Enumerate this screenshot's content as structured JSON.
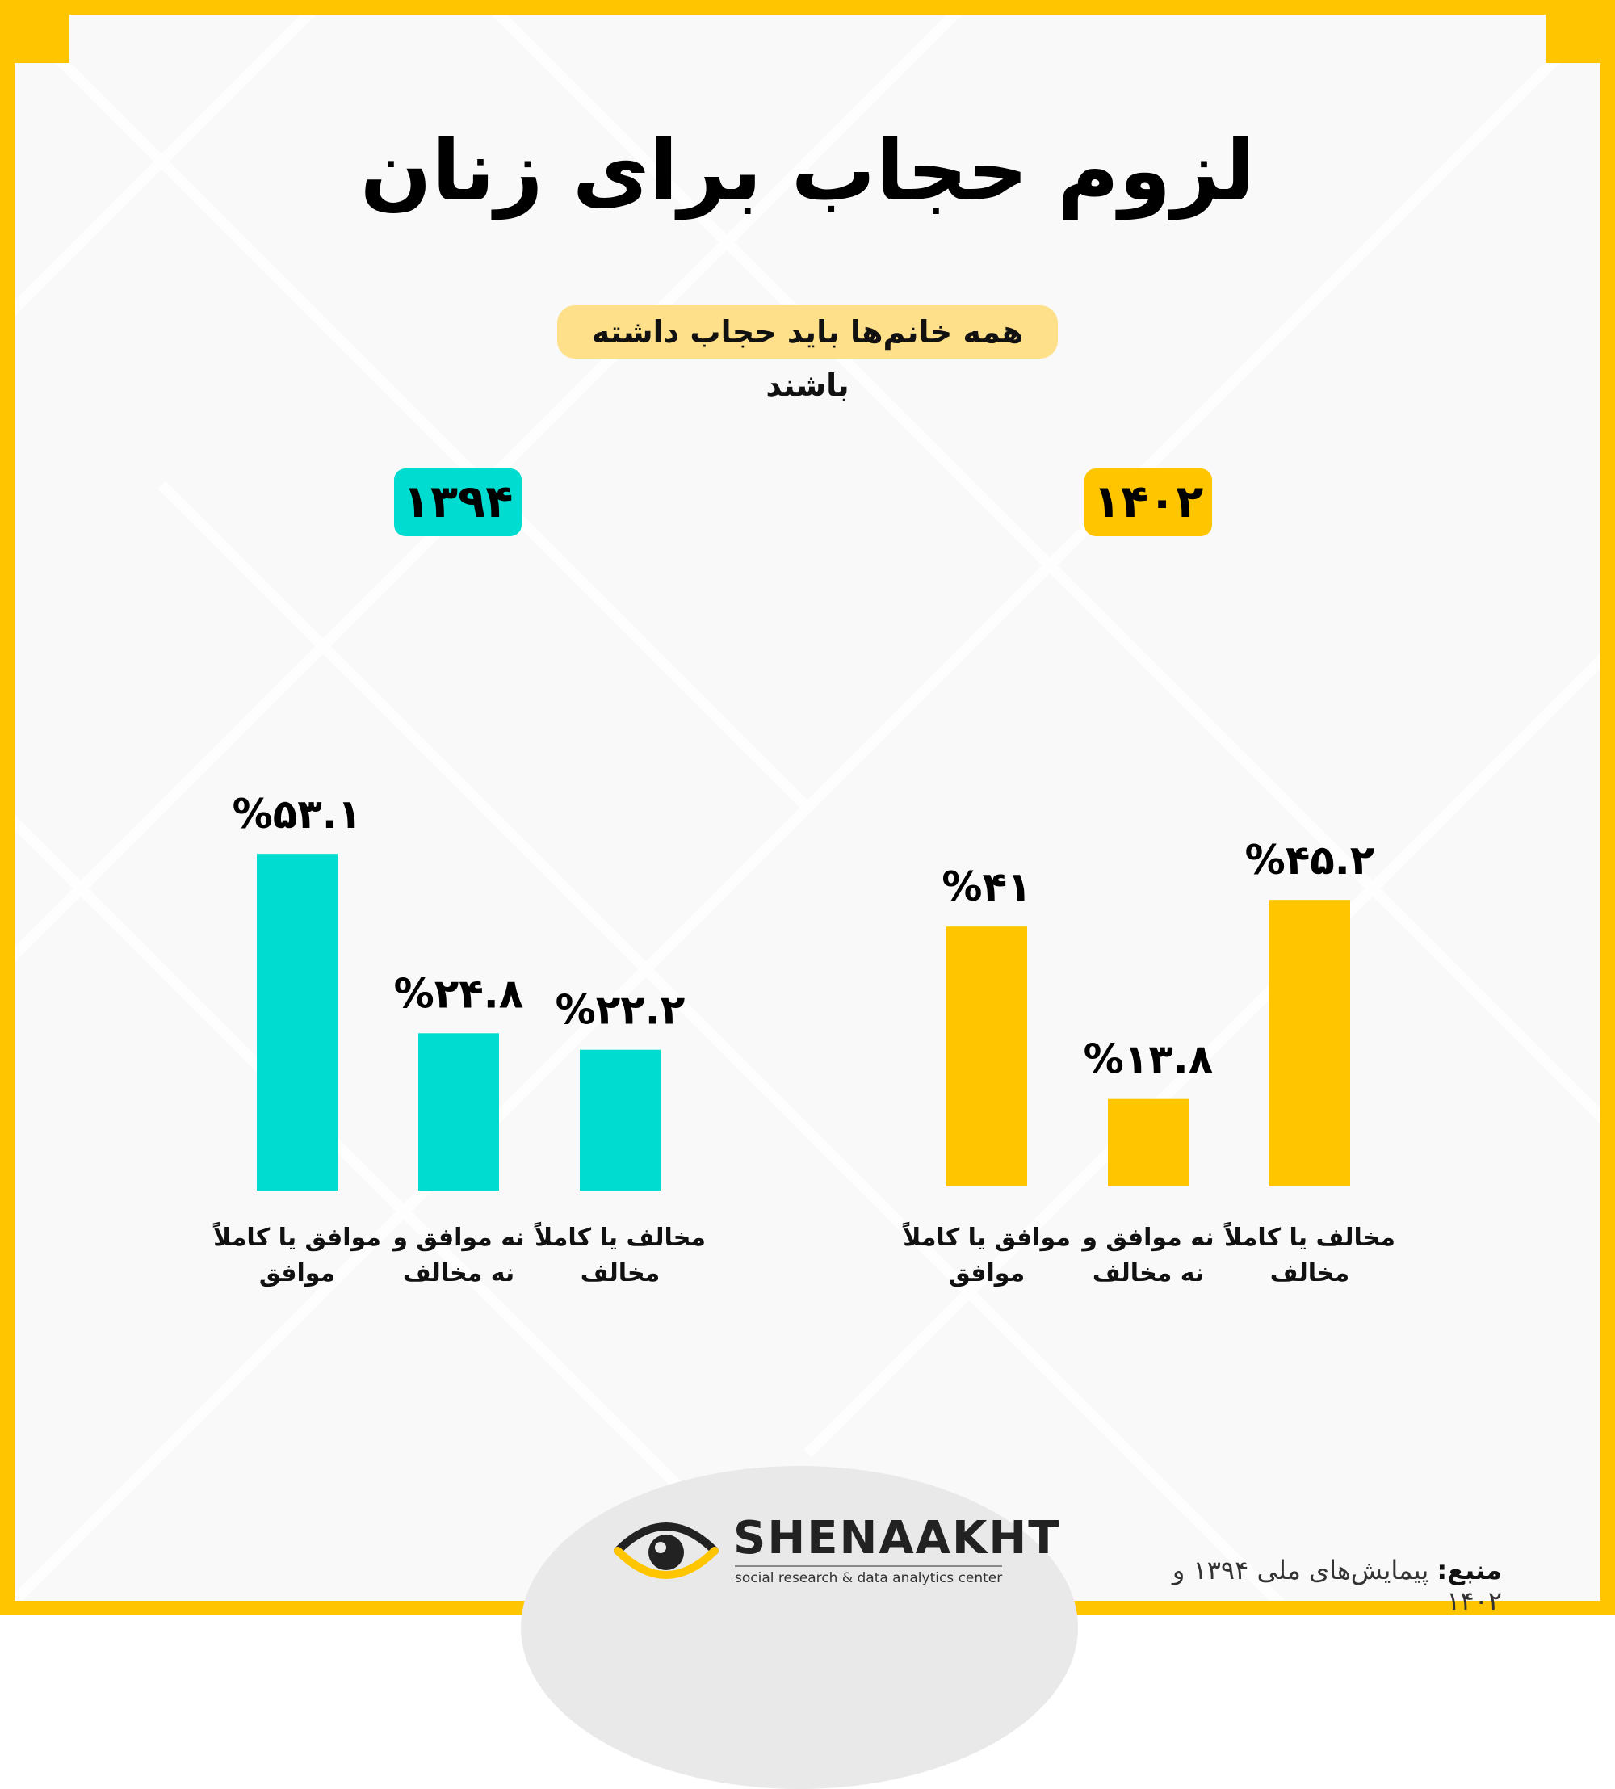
{
  "title": "لزوم حجاب برای زنان",
  "subtitle": "همه خانم‌ها باید حجاب داشته باشند",
  "colors": {
    "border": "#ffc600",
    "series_1394": "#00dccf",
    "series_1402": "#ffc600",
    "subtitle_bg": "#ffe08a"
  },
  "chart_data": [
    {
      "type": "bar",
      "year": "۱۳۹۴",
      "color": "#00dccf",
      "categories": [
        [
          "موافق یا کاملاً",
          "موافق"
        ],
        [
          "نه موافق و",
          "نه مخالف"
        ],
        [
          "مخالف یا کاملاً",
          "مخالف"
        ]
      ],
      "values": [
        53.1,
        24.8,
        22.2
      ],
      "value_labels": [
        "%۵۳.۱",
        "%۲۴.۸",
        "%۲۲.۲"
      ]
    },
    {
      "type": "bar",
      "year": "۱۴۰۲",
      "color": "#ffc600",
      "categories": [
        [
          "موافق یا کاملاً",
          "موافق"
        ],
        [
          "نه موافق و",
          "نه مخالف"
        ],
        [
          "مخالف یا کاملاً",
          "مخالف"
        ]
      ],
      "values": [
        41,
        13.8,
        45.2
      ],
      "value_labels": [
        "%۴۱",
        "%۱۳.۸",
        "%۴۵.۲"
      ]
    }
  ],
  "footer": {
    "brand": "SHENAAKHT",
    "tagline": "social research & data analytics center",
    "source_label": "منبع:",
    "source_text": "پیمایش‌های ملی ۱۳۹۴ و ۱۴۰۲"
  }
}
